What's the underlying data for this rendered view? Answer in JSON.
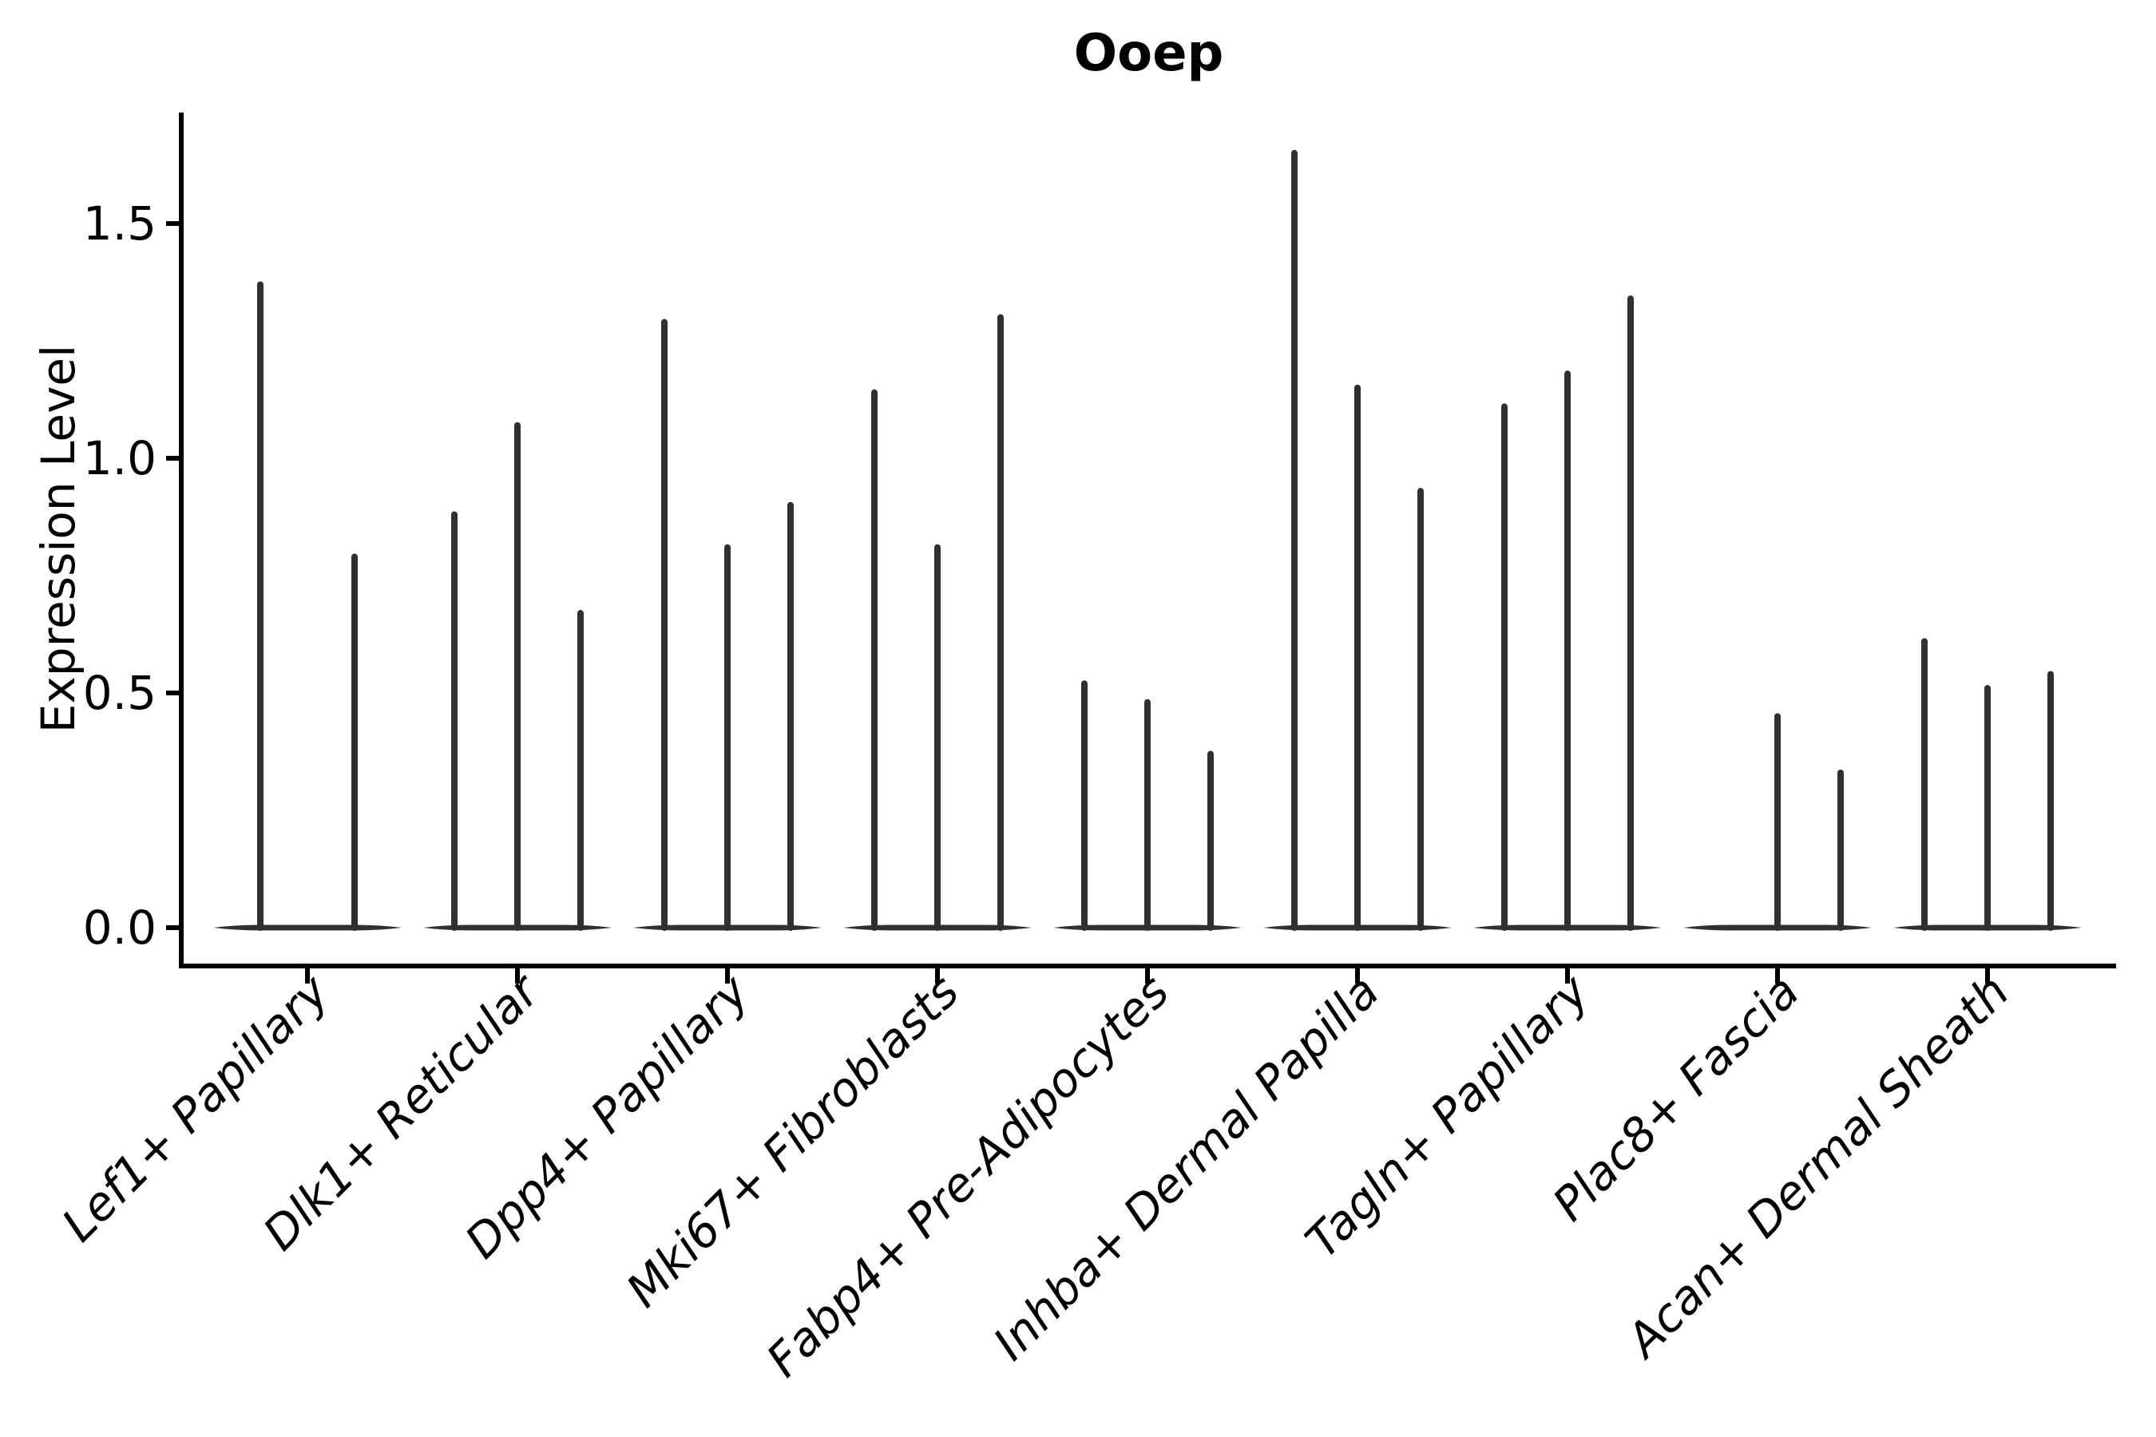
{
  "chart_data": {
    "type": "violin",
    "title": "Ooep",
    "ylabel": "Expression Level",
    "xlabel": "",
    "legend": null,
    "grid": false,
    "ylim": [
      -0.08,
      1.74
    ],
    "ytick_labels": [
      "0.0",
      "0.5",
      "1.0",
      "1.5"
    ],
    "ytick_values": [
      0.0,
      0.5,
      1.0,
      1.5
    ],
    "categories": [
      "Lef1+ Papillary",
      "Dlk1+ Reticular",
      "Dpp4+ Papillary",
      "Mki67+ Fibroblasts",
      "Fabp4+ Pre-Adipocytes",
      "Inhba+ Dermal Papilla",
      "Tagln+ Papillary",
      "Plac8+ Fascia",
      "Acan+ Dermal Sheath"
    ],
    "groups": [
      {
        "category": "Lef1+ Papillary",
        "violin_max": [
          1.37,
          0.79
        ]
      },
      {
        "category": "Dlk1+ Reticular",
        "violin_max": [
          0.88,
          1.07,
          0.67
        ]
      },
      {
        "category": "Dpp4+ Papillary",
        "violin_max": [
          1.29,
          0.81,
          0.9
        ]
      },
      {
        "category": "Mki67+ Fibroblasts",
        "violin_max": [
          1.14,
          0.81,
          1.3
        ]
      },
      {
        "category": "Fabp4+ Pre-Adipocytes",
        "violin_max": [
          0.52,
          0.48,
          0.37
        ]
      },
      {
        "category": "Inhba+ Dermal Papilla",
        "violin_max": [
          1.65,
          1.15,
          0.93
        ]
      },
      {
        "category": "Tagln+ Papillary",
        "violin_max": [
          1.11,
          1.18,
          1.34
        ]
      },
      {
        "category": "Plac8+ Fascia",
        "violin_max": [
          0.0,
          0.45,
          0.33
        ]
      },
      {
        "category": "Acan+ Dermal Sheath",
        "violin_max": [
          0.61,
          0.51,
          0.54
        ]
      }
    ],
    "colors": {
      "violin": "#303030",
      "axis": "#000000",
      "text": "#000000",
      "background": "#ffffff"
    }
  }
}
